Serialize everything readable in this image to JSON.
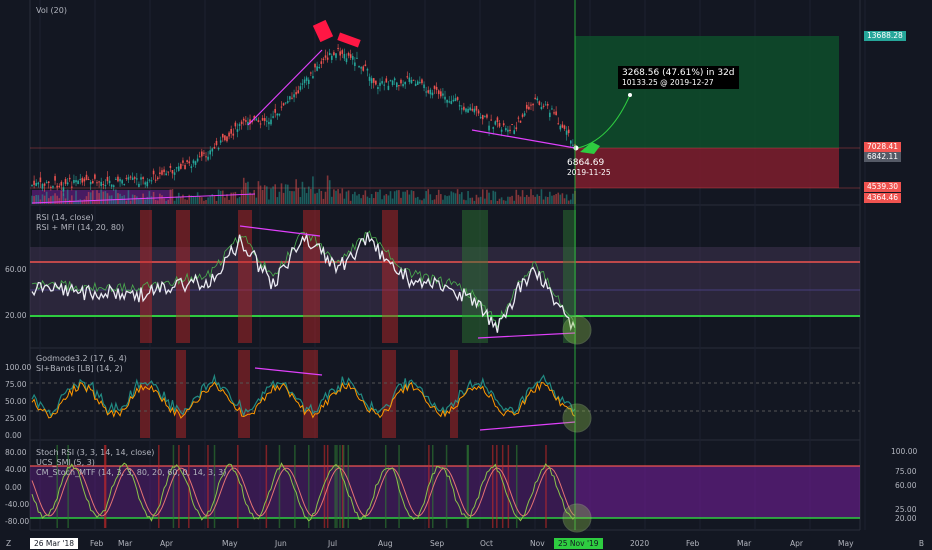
{
  "panes": {
    "price": {
      "label": "Vol (20)"
    },
    "rsi": {
      "labels": [
        "RSI (14, close)",
        "RSI + MFI (14, 20, 80)"
      ],
      "ticks": [
        "60.00",
        "20.00"
      ]
    },
    "godmode": {
      "labels": [
        "Godmode3.2 (17, 6, 4)",
        "SI+Bands [LB] (14, 2)"
      ],
      "ticks": [
        "100.00",
        "75.00",
        "50.00",
        "25.00",
        "0.00"
      ]
    },
    "stoch": {
      "labels": [
        "Stoch RSI (3, 3, 14, 14, close)",
        "UCS_SMI (5, 3)",
        "CM_Stoch_MTF (14, 3, 3, 80, 20, 60, 0, 14, 3, 3)"
      ],
      "ticks_left": [
        "80.00",
        "40.00",
        "0.00",
        "-40.00",
        "-80.00"
      ],
      "ticks_right": [
        "100.00",
        "75.00",
        "60.00",
        "25.00",
        "20.00"
      ]
    }
  },
  "price_tags": [
    {
      "value": "13688.28",
      "color": "#26a69a"
    },
    {
      "value": "7028.41",
      "color": "#ef5350"
    },
    {
      "value": "6842.11",
      "color": "#555a66"
    },
    {
      "value": "4539.30",
      "color": "#ef5350"
    },
    {
      "value": "4364.46",
      "color": "#ef5350"
    }
  ],
  "projection": {
    "headline": "3268.56 (47.61%) in 32d",
    "sub": "10133.25 @ 2019-12-27"
  },
  "current_point": {
    "price": "6864.69",
    "date": "2019-11-25"
  },
  "time_axis": {
    "start_label": "26 Mar '18",
    "months": [
      "Feb",
      "Mar",
      "Apr",
      "May",
      "Jun",
      "Jul",
      "Aug",
      "Sep",
      "Oct",
      "Nov",
      "2020",
      "Feb",
      "Mar",
      "Apr",
      "May"
    ],
    "cursor_label": "25 Nov '19"
  },
  "corner_left": "Z",
  "corner_right": "B",
  "colors": {
    "up": "#26a69a",
    "down": "#ef5350",
    "magenta": "#e040fb",
    "green": "#2ecc40",
    "purple": "#7b1fa2",
    "red_zone": "#7f1d2d",
    "green_zone": "#0e4d2a"
  }
}
